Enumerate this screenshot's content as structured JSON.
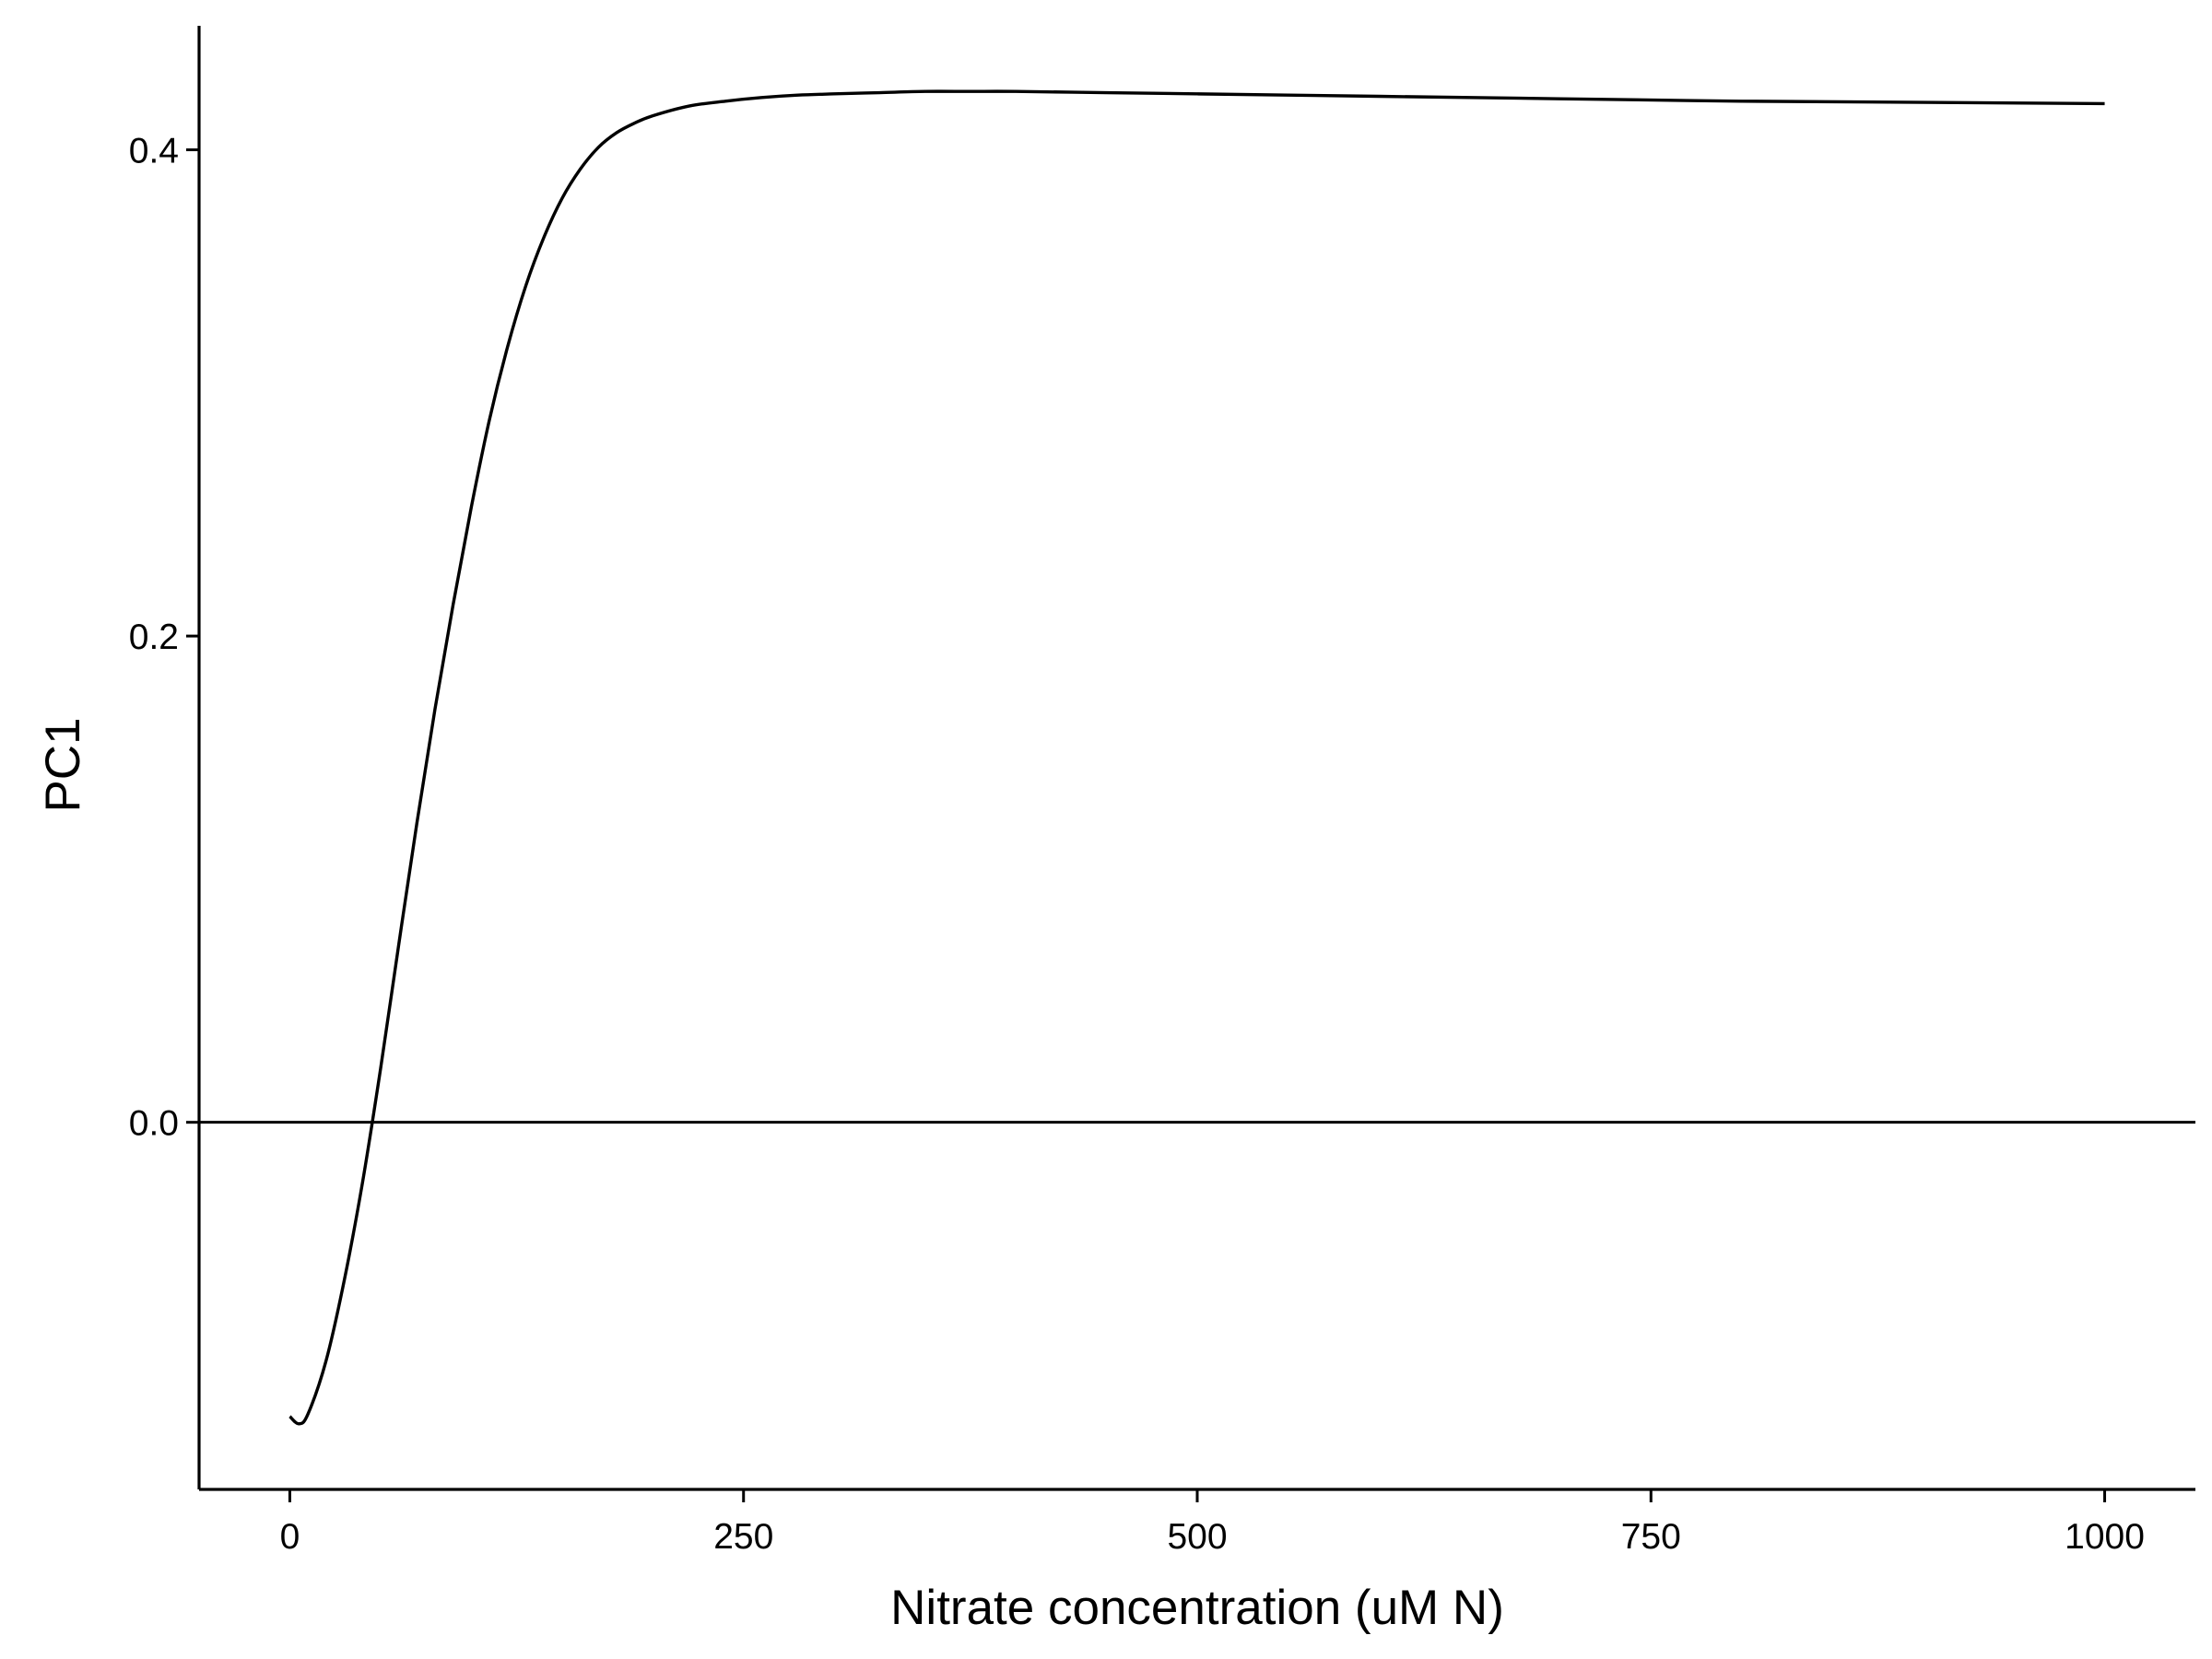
{
  "chart_data": {
    "type": "line",
    "title": "",
    "xlabel": "Nitrate concentration (uM N)",
    "ylabel": "PC1",
    "xlim": [
      -50,
      1050
    ],
    "ylim": [
      -0.151,
      0.451
    ],
    "x_ticks": [
      {
        "value": 0,
        "label": "0"
      },
      {
        "value": 250,
        "label": "250"
      },
      {
        "value": 500,
        "label": "500"
      },
      {
        "value": 750,
        "label": "750"
      },
      {
        "value": 1000,
        "label": "1000"
      }
    ],
    "y_ticks": [
      {
        "value": 0.0,
        "label": "0.0"
      },
      {
        "value": 0.2,
        "label": "0.2"
      },
      {
        "value": 0.4,
        "label": "0.4"
      }
    ],
    "reference_line": {
      "y": 0.0
    },
    "grid": false,
    "legend": "none",
    "series": [
      {
        "color": "#000000",
        "x": [
          0,
          5,
          10,
          20,
          30,
          40,
          50,
          60,
          70,
          80,
          90,
          100,
          110,
          120,
          130,
          140,
          150,
          160,
          170,
          180,
          190,
          200,
          220,
          240,
          260,
          280,
          300,
          325,
          350,
          375,
          400,
          450,
          500,
          550,
          600,
          700,
          800,
          900,
          1000
        ],
        "y": [
          -0.121,
          -0.124,
          -0.12,
          -0.098,
          -0.065,
          -0.025,
          0.022,
          0.073,
          0.123,
          0.17,
          0.213,
          0.253,
          0.289,
          0.319,
          0.344,
          0.364,
          0.38,
          0.392,
          0.401,
          0.407,
          0.411,
          0.414,
          0.418,
          0.42,
          0.4215,
          0.4225,
          0.423,
          0.4235,
          0.424,
          0.424,
          0.424,
          0.4235,
          0.423,
          0.4225,
          0.422,
          0.421,
          0.42,
          0.4195,
          0.419
        ]
      }
    ]
  }
}
